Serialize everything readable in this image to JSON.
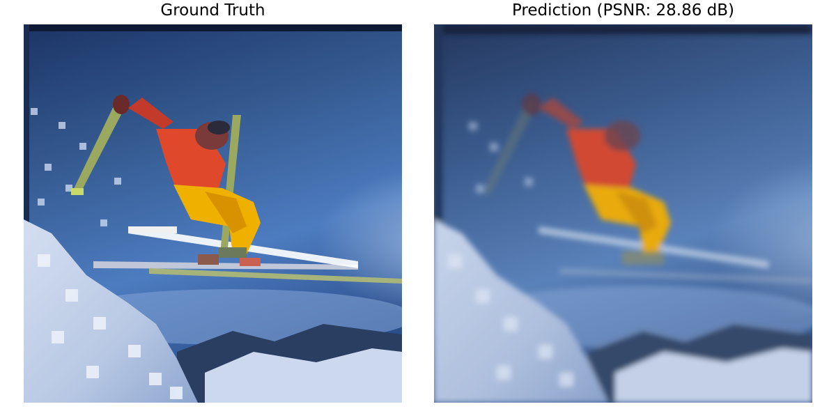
{
  "figure": {
    "panels": [
      {
        "title": "Ground Truth",
        "image_subject": "skier-jumping-photo"
      },
      {
        "title": "Prediction (PSNR: 28.86 dB)",
        "image_subject": "skier-jumping-photo-reconstruction"
      }
    ]
  },
  "colors": {
    "background": "#ffffff",
    "sky_dark": "#1f3a6e",
    "sky_mid": "#3c64a8",
    "sky_light": "#8fb0dc",
    "snow": "#c8d6ec",
    "jacket": "#d9452a",
    "pants": "#f0b000",
    "pole": "#9aa860"
  }
}
